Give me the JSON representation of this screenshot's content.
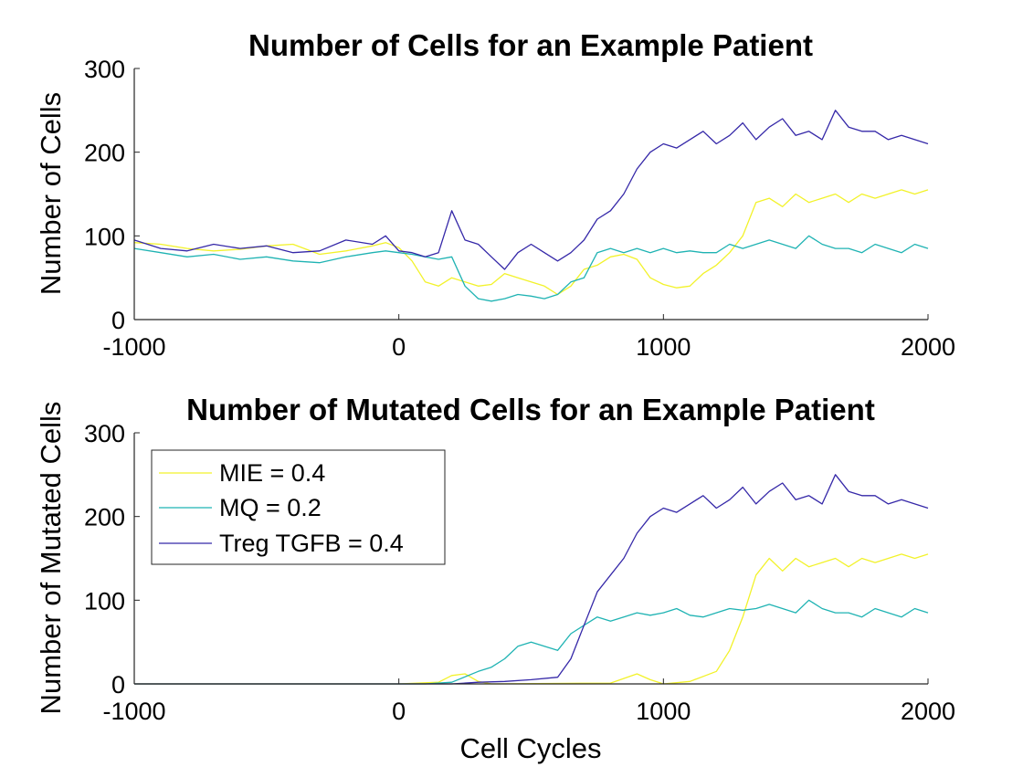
{
  "chart_data": [
    {
      "type": "line",
      "title": "Number of Cells for an Example Patient",
      "xlabel": "",
      "ylabel": "Number of Cells",
      "xlim": [
        -1000,
        2000
      ],
      "ylim": [
        0,
        300
      ],
      "xticks": [
        -1000,
        0,
        1000,
        2000
      ],
      "yticks": [
        0,
        100,
        200,
        300
      ],
      "xtick_labels": [
        "-1000",
        "0",
        "1000",
        "2000"
      ],
      "ytick_labels": [
        "0",
        "100",
        "200",
        "300"
      ],
      "legend": null,
      "series": [
        {
          "color": "#f2f22a",
          "points": [
            [
              -1000,
              92
            ],
            [
              -900,
              90
            ],
            [
              -800,
              85
            ],
            [
              -700,
              82
            ],
            [
              -600,
              84
            ],
            [
              -500,
              88
            ],
            [
              -400,
              90
            ],
            [
              -300,
              78
            ],
            [
              -200,
              82
            ],
            [
              -100,
              88
            ],
            [
              -50,
              92
            ],
            [
              0,
              86
            ],
            [
              50,
              70
            ],
            [
              100,
              45
            ],
            [
              150,
              40
            ],
            [
              200,
              50
            ],
            [
              250,
              45
            ],
            [
              300,
              40
            ],
            [
              350,
              42
            ],
            [
              400,
              55
            ],
            [
              450,
              50
            ],
            [
              500,
              45
            ],
            [
              550,
              40
            ],
            [
              600,
              30
            ],
            [
              650,
              40
            ],
            [
              700,
              60
            ],
            [
              750,
              65
            ],
            [
              800,
              75
            ],
            [
              850,
              78
            ],
            [
              900,
              72
            ],
            [
              950,
              50
            ],
            [
              1000,
              42
            ],
            [
              1050,
              38
            ],
            [
              1100,
              40
            ],
            [
              1150,
              55
            ],
            [
              1200,
              65
            ],
            [
              1250,
              80
            ],
            [
              1300,
              100
            ],
            [
              1350,
              140
            ],
            [
              1400,
              145
            ],
            [
              1450,
              135
            ],
            [
              1500,
              150
            ],
            [
              1550,
              140
            ],
            [
              1600,
              145
            ],
            [
              1650,
              150
            ],
            [
              1700,
              140
            ],
            [
              1750,
              150
            ],
            [
              1800,
              145
            ],
            [
              1850,
              150
            ],
            [
              1900,
              155
            ],
            [
              1950,
              150
            ],
            [
              2000,
              155
            ]
          ]
        },
        {
          "color": "#1fb3b3",
          "points": [
            [
              -1000,
              85
            ],
            [
              -900,
              80
            ],
            [
              -800,
              75
            ],
            [
              -700,
              78
            ],
            [
              -600,
              72
            ],
            [
              -500,
              75
            ],
            [
              -400,
              70
            ],
            [
              -300,
              68
            ],
            [
              -200,
              75
            ],
            [
              -100,
              80
            ],
            [
              -50,
              82
            ],
            [
              0,
              80
            ],
            [
              50,
              78
            ],
            [
              100,
              75
            ],
            [
              150,
              72
            ],
            [
              200,
              75
            ],
            [
              250,
              40
            ],
            [
              300,
              25
            ],
            [
              350,
              22
            ],
            [
              400,
              25
            ],
            [
              450,
              30
            ],
            [
              500,
              28
            ],
            [
              550,
              25
            ],
            [
              600,
              30
            ],
            [
              650,
              45
            ],
            [
              700,
              50
            ],
            [
              750,
              80
            ],
            [
              800,
              85
            ],
            [
              850,
              80
            ],
            [
              900,
              85
            ],
            [
              950,
              80
            ],
            [
              1000,
              85
            ],
            [
              1050,
              80
            ],
            [
              1100,
              82
            ],
            [
              1150,
              80
            ],
            [
              1200,
              80
            ],
            [
              1250,
              90
            ],
            [
              1300,
              85
            ],
            [
              1350,
              90
            ],
            [
              1400,
              95
            ],
            [
              1450,
              90
            ],
            [
              1500,
              85
            ],
            [
              1550,
              100
            ],
            [
              1600,
              90
            ],
            [
              1650,
              85
            ],
            [
              1700,
              85
            ],
            [
              1750,
              80
            ],
            [
              1800,
              90
            ],
            [
              1850,
              85
            ],
            [
              1900,
              80
            ],
            [
              1950,
              90
            ],
            [
              2000,
              85
            ]
          ]
        },
        {
          "color": "#3528a8",
          "points": [
            [
              -1000,
              95
            ],
            [
              -900,
              85
            ],
            [
              -800,
              82
            ],
            [
              -700,
              90
            ],
            [
              -600,
              85
            ],
            [
              -500,
              88
            ],
            [
              -400,
              80
            ],
            [
              -300,
              82
            ],
            [
              -200,
              95
            ],
            [
              -100,
              90
            ],
            [
              -50,
              100
            ],
            [
              0,
              82
            ],
            [
              50,
              80
            ],
            [
              100,
              75
            ],
            [
              150,
              80
            ],
            [
              200,
              130
            ],
            [
              250,
              95
            ],
            [
              300,
              90
            ],
            [
              350,
              75
            ],
            [
              400,
              60
            ],
            [
              450,
              80
            ],
            [
              500,
              90
            ],
            [
              550,
              80
            ],
            [
              600,
              70
            ],
            [
              650,
              80
            ],
            [
              700,
              95
            ],
            [
              750,
              120
            ],
            [
              800,
              130
            ],
            [
              850,
              150
            ],
            [
              900,
              180
            ],
            [
              950,
              200
            ],
            [
              1000,
              210
            ],
            [
              1050,
              205
            ],
            [
              1100,
              215
            ],
            [
              1150,
              225
            ],
            [
              1200,
              210
            ],
            [
              1250,
              220
            ],
            [
              1300,
              235
            ],
            [
              1350,
              215
            ],
            [
              1400,
              230
            ],
            [
              1450,
              240
            ],
            [
              1500,
              220
            ],
            [
              1550,
              225
            ],
            [
              1600,
              215
            ],
            [
              1650,
              250
            ],
            [
              1700,
              230
            ],
            [
              1750,
              225
            ],
            [
              1800,
              225
            ],
            [
              1850,
              215
            ],
            [
              1900,
              220
            ],
            [
              1950,
              215
            ],
            [
              2000,
              210
            ]
          ]
        }
      ]
    },
    {
      "type": "line",
      "title": "Number of Mutated Cells for an Example Patient",
      "xlabel": "Cell Cycles",
      "ylabel": "Number of Mutated Cells",
      "xlim": [
        -1000,
        2000
      ],
      "ylim": [
        0,
        300
      ],
      "xticks": [
        -1000,
        0,
        1000,
        2000
      ],
      "yticks": [
        0,
        100,
        200,
        300
      ],
      "xtick_labels": [
        "-1000",
        "0",
        "1000",
        "2000"
      ],
      "ytick_labels": [
        "0",
        "100",
        "200",
        "300"
      ],
      "legend": {
        "placement": "upper-left",
        "entries": [
          "MIE = 0.4",
          "MQ = 0.2",
          "Treg TGFB = 0.4"
        ]
      },
      "series": [
        {
          "name": "MIE = 0.4",
          "color": "#f2f22a",
          "points": [
            [
              -1000,
              0
            ],
            [
              0,
              0
            ],
            [
              150,
              2
            ],
            [
              200,
              10
            ],
            [
              250,
              12
            ],
            [
              300,
              3
            ],
            [
              350,
              0
            ],
            [
              800,
              1
            ],
            [
              900,
              12
            ],
            [
              950,
              5
            ],
            [
              1000,
              0
            ],
            [
              1100,
              3
            ],
            [
              1200,
              15
            ],
            [
              1250,
              40
            ],
            [
              1300,
              80
            ],
            [
              1350,
              130
            ],
            [
              1400,
              150
            ],
            [
              1450,
              135
            ],
            [
              1500,
              150
            ],
            [
              1550,
              140
            ],
            [
              1600,
              145
            ],
            [
              1650,
              150
            ],
            [
              1700,
              140
            ],
            [
              1750,
              150
            ],
            [
              1800,
              145
            ],
            [
              1850,
              150
            ],
            [
              1900,
              155
            ],
            [
              1950,
              150
            ],
            [
              2000,
              155
            ]
          ]
        },
        {
          "name": "MQ = 0.2",
          "color": "#1fb3b3",
          "points": [
            [
              -1000,
              0
            ],
            [
              0,
              0
            ],
            [
              100,
              0
            ],
            [
              200,
              2
            ],
            [
              300,
              15
            ],
            [
              350,
              20
            ],
            [
              400,
              30
            ],
            [
              450,
              45
            ],
            [
              500,
              50
            ],
            [
              550,
              45
            ],
            [
              600,
              40
            ],
            [
              650,
              60
            ],
            [
              700,
              70
            ],
            [
              750,
              80
            ],
            [
              800,
              75
            ],
            [
              850,
              80
            ],
            [
              900,
              85
            ],
            [
              950,
              82
            ],
            [
              1000,
              85
            ],
            [
              1050,
              90
            ],
            [
              1100,
              82
            ],
            [
              1150,
              80
            ],
            [
              1200,
              85
            ],
            [
              1250,
              90
            ],
            [
              1300,
              88
            ],
            [
              1350,
              90
            ],
            [
              1400,
              95
            ],
            [
              1450,
              90
            ],
            [
              1500,
              85
            ],
            [
              1550,
              100
            ],
            [
              1600,
              90
            ],
            [
              1650,
              85
            ],
            [
              1700,
              85
            ],
            [
              1750,
              80
            ],
            [
              1800,
              90
            ],
            [
              1850,
              85
            ],
            [
              1900,
              80
            ],
            [
              1950,
              90
            ],
            [
              2000,
              85
            ]
          ]
        },
        {
          "name": "Treg TGFB = 0.4",
          "color": "#3528a8",
          "points": [
            [
              -1000,
              0
            ],
            [
              0,
              0
            ],
            [
              100,
              0
            ],
            [
              200,
              0
            ],
            [
              300,
              2
            ],
            [
              400,
              3
            ],
            [
              500,
              5
            ],
            [
              600,
              8
            ],
            [
              650,
              30
            ],
            [
              700,
              70
            ],
            [
              750,
              110
            ],
            [
              800,
              130
            ],
            [
              850,
              150
            ],
            [
              900,
              180
            ],
            [
              950,
              200
            ],
            [
              1000,
              210
            ],
            [
              1050,
              205
            ],
            [
              1100,
              215
            ],
            [
              1150,
              225
            ],
            [
              1200,
              210
            ],
            [
              1250,
              220
            ],
            [
              1300,
              235
            ],
            [
              1350,
              215
            ],
            [
              1400,
              230
            ],
            [
              1450,
              240
            ],
            [
              1500,
              220
            ],
            [
              1550,
              225
            ],
            [
              1600,
              215
            ],
            [
              1650,
              250
            ],
            [
              1700,
              230
            ],
            [
              1750,
              225
            ],
            [
              1800,
              225
            ],
            [
              1850,
              215
            ],
            [
              1900,
              220
            ],
            [
              1950,
              215
            ],
            [
              2000,
              210
            ]
          ]
        }
      ]
    }
  ]
}
